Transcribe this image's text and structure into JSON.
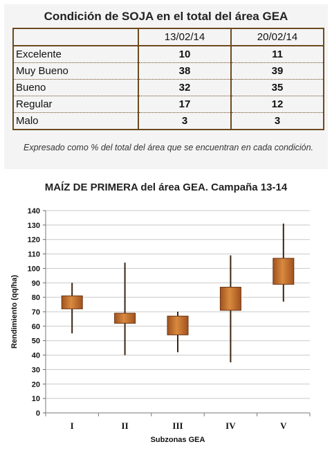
{
  "table": {
    "title": "Condición de SOJA en el total del área GEA",
    "columns": [
      "13/02/14",
      "20/02/14"
    ],
    "rows": [
      {
        "label": "Excelente",
        "values": [
          "10",
          "11"
        ]
      },
      {
        "label": "Muy Bueno",
        "values": [
          "38",
          "39"
        ]
      },
      {
        "label": "Bueno",
        "values": [
          "32",
          "35"
        ]
      },
      {
        "label": "Regular",
        "values": [
          "17",
          "12"
        ]
      },
      {
        "label": "Malo",
        "values": [
          "3",
          "3"
        ]
      }
    ],
    "note": "Expresado como % del total del área que se encuentran en cada condición."
  },
  "chart_data": {
    "type": "candlestick",
    "title": "MAÍZ DE PRIMERA del área GEA. Campaña 13-14",
    "xlabel": "Subzonas GEA",
    "ylabel": "Rendimiento (qq/ha)",
    "ylim": [
      0,
      140
    ],
    "ytick_step": 10,
    "grid": true,
    "categories": [
      "I",
      "II",
      "III",
      "IV",
      "V"
    ],
    "low": [
      55,
      40,
      42,
      35,
      77
    ],
    "box_low": [
      72,
      62,
      54,
      71,
      89
    ],
    "box_high": [
      81,
      69,
      67,
      87,
      107
    ],
    "high": [
      90,
      104,
      70,
      109,
      131
    ],
    "colors": {
      "box": "#a0521f",
      "box_highlight": "#d98a3e",
      "whisker": "#3a2414",
      "grid": "#c8c8c8"
    }
  }
}
